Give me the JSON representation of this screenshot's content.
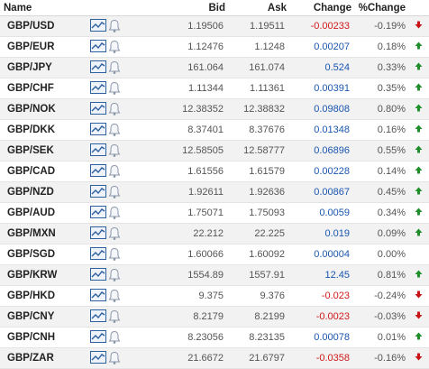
{
  "header": {
    "name": "Name",
    "bid": "Bid",
    "ask": "Ask",
    "change": "Change",
    "pct_change": "%Change"
  },
  "colors": {
    "up_arrow": "#1f8f2a",
    "down_arrow": "#c81414",
    "positive_text": "#1a56b0",
    "negative_text": "#d11a1a",
    "icon_blue": "#2e5f9e"
  },
  "icons": {
    "chart": "line-chart-icon",
    "alert": "bell-icon"
  },
  "rows": [
    {
      "name": "GBP/USD",
      "bid": "1.19506",
      "ask": "1.19511",
      "change": "-0.00233",
      "pct": "-0.19%",
      "dir": "down"
    },
    {
      "name": "GBP/EUR",
      "bid": "1.12476",
      "ask": "1.1248",
      "change": "0.00207",
      "pct": "0.18%",
      "dir": "up"
    },
    {
      "name": "GBP/JPY",
      "bid": "161.064",
      "ask": "161.074",
      "change": "0.524",
      "pct": "0.33%",
      "dir": "up"
    },
    {
      "name": "GBP/CHF",
      "bid": "1.11344",
      "ask": "1.11361",
      "change": "0.00391",
      "pct": "0.35%",
      "dir": "up"
    },
    {
      "name": "GBP/NOK",
      "bid": "12.38352",
      "ask": "12.38832",
      "change": "0.09808",
      "pct": "0.80%",
      "dir": "up"
    },
    {
      "name": "GBP/DKK",
      "bid": "8.37401",
      "ask": "8.37676",
      "change": "0.01348",
      "pct": "0.16%",
      "dir": "up"
    },
    {
      "name": "GBP/SEK",
      "bid": "12.58505",
      "ask": "12.58777",
      "change": "0.06896",
      "pct": "0.55%",
      "dir": "up"
    },
    {
      "name": "GBP/CAD",
      "bid": "1.61556",
      "ask": "1.61579",
      "change": "0.00228",
      "pct": "0.14%",
      "dir": "up"
    },
    {
      "name": "GBP/NZD",
      "bid": "1.92611",
      "ask": "1.92636",
      "change": "0.00867",
      "pct": "0.45%",
      "dir": "up"
    },
    {
      "name": "GBP/AUD",
      "bid": "1.75071",
      "ask": "1.75093",
      "change": "0.0059",
      "pct": "0.34%",
      "dir": "up"
    },
    {
      "name": "GBP/MXN",
      "bid": "22.212",
      "ask": "22.225",
      "change": "0.019",
      "pct": "0.09%",
      "dir": "up"
    },
    {
      "name": "GBP/SGD",
      "bid": "1.60066",
      "ask": "1.60092",
      "change": "0.00004",
      "pct": "0.00%",
      "dir": "none"
    },
    {
      "name": "GBP/KRW",
      "bid": "1554.89",
      "ask": "1557.91",
      "change": "12.45",
      "pct": "0.81%",
      "dir": "up"
    },
    {
      "name": "GBP/HKD",
      "bid": "9.375",
      "ask": "9.376",
      "change": "-0.023",
      "pct": "-0.24%",
      "dir": "down"
    },
    {
      "name": "GBP/CNY",
      "bid": "8.2179",
      "ask": "8.2199",
      "change": "-0.0023",
      "pct": "-0.03%",
      "dir": "down"
    },
    {
      "name": "GBP/CNH",
      "bid": "8.23056",
      "ask": "8.23135",
      "change": "0.00078",
      "pct": "0.01%",
      "dir": "up"
    },
    {
      "name": "GBP/ZAR",
      "bid": "21.6672",
      "ask": "21.6797",
      "change": "-0.0358",
      "pct": "-0.16%",
      "dir": "down"
    }
  ]
}
